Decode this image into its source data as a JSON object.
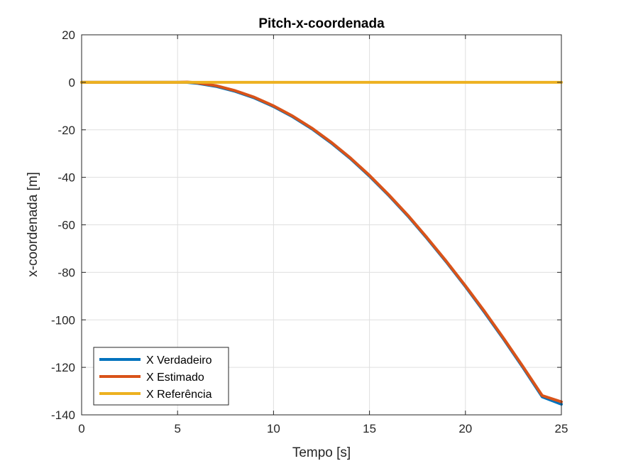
{
  "chart_data": {
    "type": "line",
    "title": "Pitch-x-coordenada",
    "xlabel": "Tempo [s]",
    "ylabel": "x-coordenada [m]",
    "xlim": [
      0,
      25
    ],
    "ylim": [
      -140,
      20
    ],
    "xticks": [
      0,
      5,
      10,
      15,
      20,
      25
    ],
    "yticks": [
      20,
      0,
      -20,
      -40,
      -60,
      -80,
      -100,
      -120,
      -140
    ],
    "grid": true,
    "legend_position": "bottom-left",
    "series": [
      {
        "name": "X Verdadeiro",
        "color": "#0072BD",
        "x": [
          0,
          5,
          5.5,
          6,
          7,
          8,
          9,
          10,
          11,
          12,
          13,
          14,
          15,
          16,
          17,
          18,
          19,
          20,
          21,
          22,
          23,
          24,
          25
        ],
        "values": [
          0,
          0,
          -0.05,
          -0.4,
          -1.7,
          -3.8,
          -6.6,
          -10.2,
          -14.5,
          -19.6,
          -25.5,
          -32.1,
          -39.5,
          -47.6,
          -56.3,
          -65.7,
          -75.6,
          -86.0,
          -96.9,
          -108.3,
          -120.1,
          -132.4,
          -135.5
        ]
      },
      {
        "name": "X Estimado",
        "color": "#D95319",
        "x": [
          0,
          5,
          5.5,
          6,
          7,
          8,
          9,
          10,
          11,
          12,
          13,
          14,
          15,
          16,
          17,
          18,
          19,
          20,
          21,
          22,
          23,
          24,
          25
        ],
        "values": [
          0,
          0,
          0.1,
          -0.2,
          -1.4,
          -3.5,
          -6.3,
          -9.9,
          -14.2,
          -19.3,
          -25.2,
          -31.8,
          -39.2,
          -47.3,
          -56.0,
          -65.4,
          -75.3,
          -85.7,
          -96.5,
          -107.9,
          -119.7,
          -131.9,
          -134.5
        ]
      },
      {
        "name": "X Referência",
        "color": "#EDB120",
        "x": [
          0,
          25
        ],
        "values": [
          0,
          0
        ]
      }
    ]
  }
}
